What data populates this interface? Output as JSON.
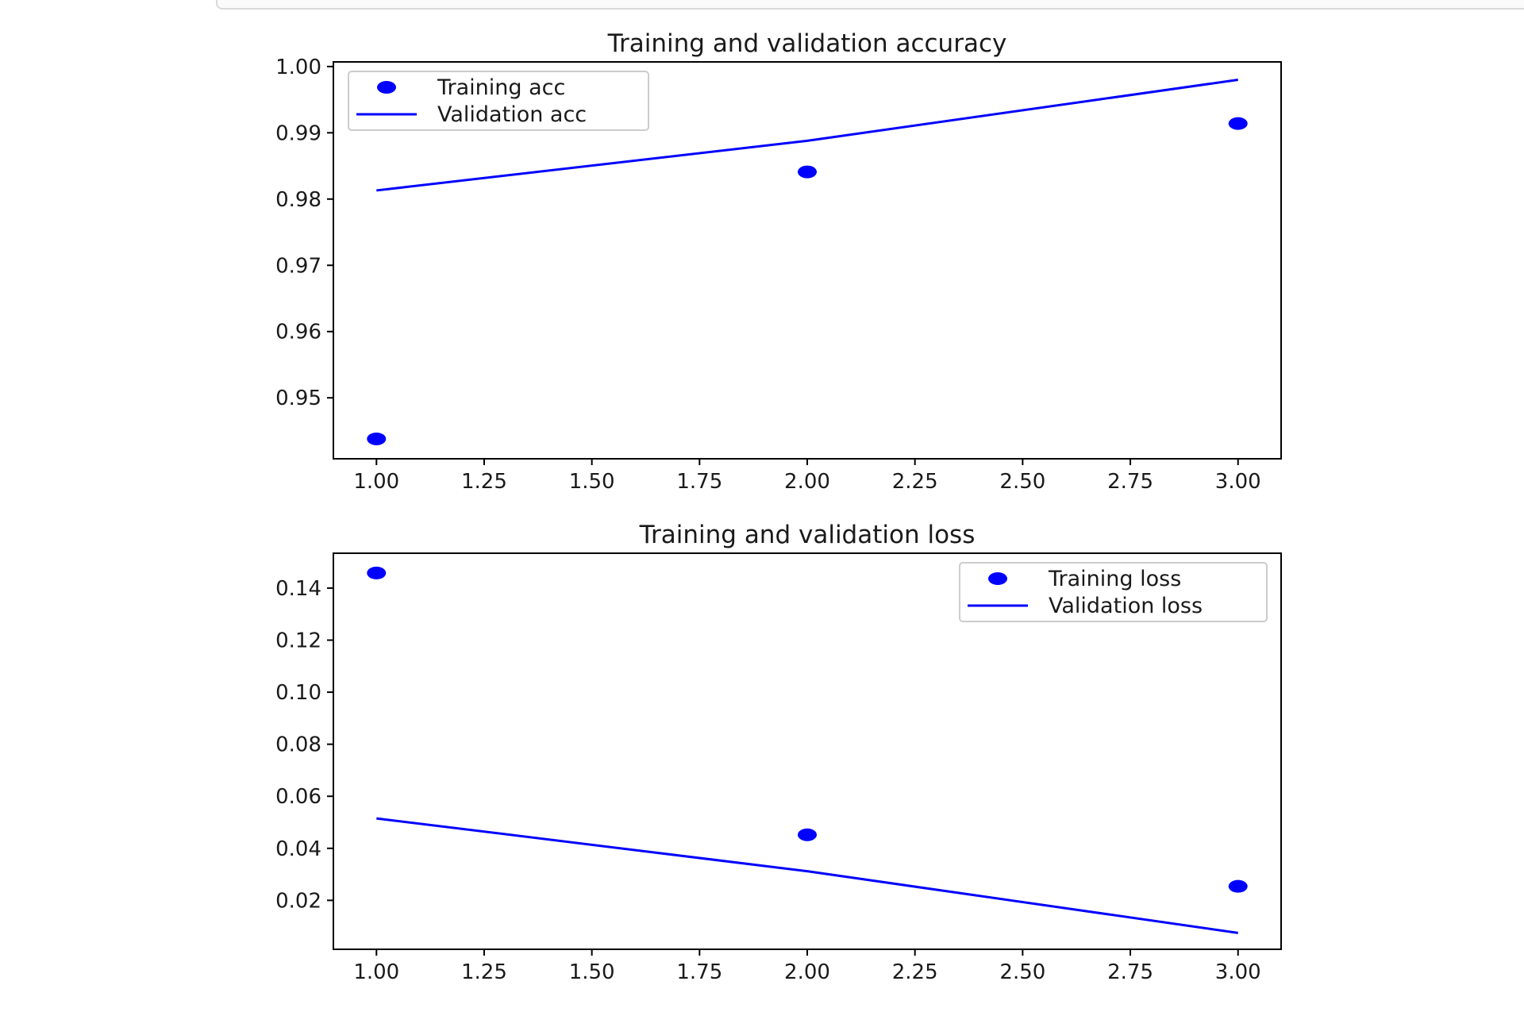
{
  "chart_data": [
    {
      "type": "line",
      "title": "Training and validation accuracy",
      "xlabel": "",
      "ylabel": "",
      "xlim": [
        0.9,
        3.1
      ],
      "ylim": [
        0.9408,
        1.0007
      ],
      "xticks": [
        1.0,
        1.25,
        1.5,
        1.75,
        2.0,
        2.25,
        2.5,
        2.75,
        3.0
      ],
      "xtick_labels": [
        "1.00",
        "1.25",
        "1.50",
        "1.75",
        "2.00",
        "2.25",
        "2.50",
        "2.75",
        "3.00"
      ],
      "yticks": [
        0.95,
        0.96,
        0.97,
        0.98,
        0.99,
        1.0
      ],
      "ytick_labels": [
        "0.95",
        "0.96",
        "0.97",
        "0.98",
        "0.99",
        "1.00"
      ],
      "legend_position": "upper-left",
      "grid": false,
      "series": [
        {
          "name": "Training acc",
          "style": "markers",
          "color": "#0000ff",
          "x": [
            1,
            2,
            3
          ],
          "y": [
            0.9438,
            0.9841,
            0.9914
          ]
        },
        {
          "name": "Validation acc",
          "style": "line",
          "color": "#0000ff",
          "x": [
            1,
            2,
            3
          ],
          "y": [
            0.9813,
            0.9888,
            0.998
          ]
        }
      ]
    },
    {
      "type": "line",
      "title": "Training and validation loss",
      "xlabel": "",
      "ylabel": "",
      "xlim": [
        0.9,
        3.1
      ],
      "ylim": [
        0.0012,
        0.1534
      ],
      "xticks": [
        1.0,
        1.25,
        1.5,
        1.75,
        2.0,
        2.25,
        2.5,
        2.75,
        3.0
      ],
      "xtick_labels": [
        "1.00",
        "1.25",
        "1.50",
        "1.75",
        "2.00",
        "2.25",
        "2.50",
        "2.75",
        "3.00"
      ],
      "yticks": [
        0.02,
        0.04,
        0.06,
        0.08,
        0.1,
        0.12,
        0.14
      ],
      "ytick_labels": [
        "0.02",
        "0.04",
        "0.06",
        "0.08",
        "0.10",
        "0.12",
        "0.14"
      ],
      "legend_position": "upper-right",
      "grid": false,
      "series": [
        {
          "name": "Training loss",
          "style": "markers",
          "color": "#0000ff",
          "x": [
            1,
            2,
            3
          ],
          "y": [
            0.1458,
            0.0452,
            0.0254
          ]
        },
        {
          "name": "Validation loss",
          "style": "line",
          "color": "#0000ff",
          "x": [
            1,
            2,
            3
          ],
          "y": [
            0.0515,
            0.0312,
            0.0075
          ]
        }
      ]
    }
  ]
}
